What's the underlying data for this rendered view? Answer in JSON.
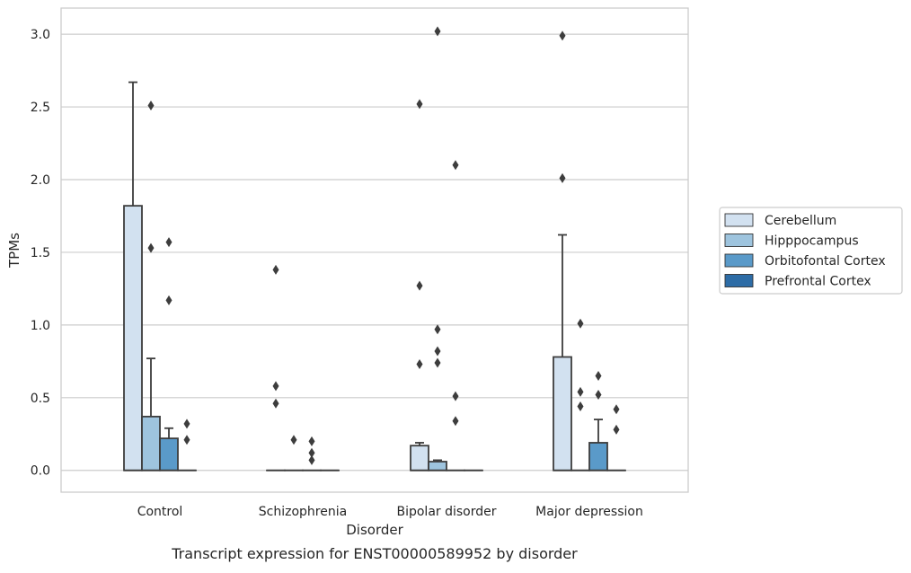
{
  "chart_data": {
    "type": "box",
    "caption": "Transcript expression for ENST00000589952 by disorder",
    "xlabel": "Disorder",
    "ylabel": "TPMs",
    "ylim": [
      -0.15,
      3.18
    ],
    "yticks": [
      0.0,
      0.5,
      1.0,
      1.5,
      2.0,
      2.5,
      3.0
    ],
    "ytick_labels": [
      "0.0",
      "0.5",
      "1.0",
      "1.5",
      "2.0",
      "2.5",
      "3.0"
    ],
    "grid": "horizontal",
    "legend_position": "right",
    "categories": [
      "Control",
      "Schizophrenia",
      "Bipolar disorder",
      "Major depression"
    ],
    "series": [
      {
        "name": "Cerebellum",
        "color": "#d2e1f0",
        "boxes": [
          {
            "q1": 0.0,
            "median": 0.0,
            "q3": 1.82,
            "whisker_low": 0.0,
            "whisker_high": 2.67,
            "outliers": []
          },
          {
            "q1": 0.0,
            "median": 0.0,
            "q3": 0.0,
            "whisker_low": 0.0,
            "whisker_high": 0.0,
            "outliers": [
              1.38,
              0.58,
              0.46
            ]
          },
          {
            "q1": 0.0,
            "median": 0.0,
            "q3": 0.17,
            "whisker_low": 0.0,
            "whisker_high": 0.19,
            "outliers": [
              2.52,
              1.27,
              0.73
            ]
          },
          {
            "q1": 0.0,
            "median": 0.0,
            "q3": 0.78,
            "whisker_low": 0.0,
            "whisker_high": 1.62,
            "outliers": [
              2.99,
              2.01
            ]
          }
        ]
      },
      {
        "name": "Hipppocampus",
        "color": "#9ec4de",
        "boxes": [
          {
            "q1": 0.0,
            "median": 0.0,
            "q3": 0.37,
            "whisker_low": 0.0,
            "whisker_high": 0.77,
            "outliers": [
              2.51,
              1.53
            ]
          },
          {
            "q1": 0.0,
            "median": 0.0,
            "q3": 0.0,
            "whisker_low": 0.0,
            "whisker_high": 0.0,
            "outliers": [
              0.21
            ]
          },
          {
            "q1": 0.0,
            "median": 0.0,
            "q3": 0.06,
            "whisker_low": 0.0,
            "whisker_high": 0.07,
            "outliers": [
              3.02,
              0.97,
              0.82,
              0.74
            ]
          },
          {
            "q1": 0.0,
            "median": 0.0,
            "q3": 0.0,
            "whisker_low": 0.0,
            "whisker_high": 0.0,
            "outliers": [
              1.01,
              0.54,
              0.44
            ]
          }
        ]
      },
      {
        "name": "Orbitofontal Cortex",
        "color": "#5a9ac9",
        "boxes": [
          {
            "q1": 0.0,
            "median": 0.0,
            "q3": 0.22,
            "whisker_low": 0.0,
            "whisker_high": 0.29,
            "outliers": [
              1.57,
              1.17
            ]
          },
          {
            "q1": 0.0,
            "median": 0.0,
            "q3": 0.0,
            "whisker_low": 0.0,
            "whisker_high": 0.0,
            "outliers": [
              0.2,
              0.12,
              0.07
            ]
          },
          {
            "q1": 0.0,
            "median": 0.0,
            "q3": 0.0,
            "whisker_low": 0.0,
            "whisker_high": 0.0,
            "outliers": [
              2.1,
              0.51,
              0.34
            ]
          },
          {
            "q1": 0.0,
            "median": 0.0,
            "q3": 0.19,
            "whisker_low": 0.0,
            "whisker_high": 0.35,
            "outliers": [
              0.65,
              0.52
            ]
          }
        ]
      },
      {
        "name": "Prefrontal Cortex",
        "color": "#2d6ca6",
        "boxes": [
          {
            "q1": 0.0,
            "median": 0.0,
            "q3": 0.0,
            "whisker_low": 0.0,
            "whisker_high": 0.0,
            "outliers": [
              0.32,
              0.21
            ]
          },
          {
            "q1": 0.0,
            "median": 0.0,
            "q3": 0.0,
            "whisker_low": 0.0,
            "whisker_high": 0.0,
            "outliers": []
          },
          {
            "q1": 0.0,
            "median": 0.0,
            "q3": 0.0,
            "whisker_low": 0.0,
            "whisker_high": 0.0,
            "outliers": []
          },
          {
            "q1": 0.0,
            "median": 0.0,
            "q3": 0.0,
            "whisker_low": 0.0,
            "whisker_high": 0.0,
            "outliers": [
              0.42,
              0.28
            ]
          }
        ]
      }
    ]
  }
}
